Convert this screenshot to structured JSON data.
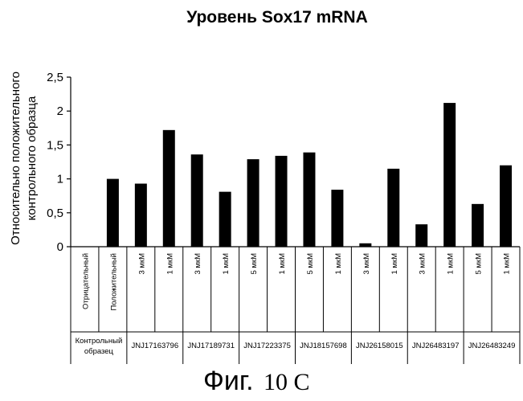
{
  "figure": {
    "caption_main": "Фиг.",
    "caption_suffix": "10 C"
  },
  "chart_data": {
    "type": "bar",
    "title": "Уровень Sox17 mRNA",
    "ylabel_lines": [
      "Относительно положительного",
      "контрольного образца"
    ],
    "xlabel": "",
    "ylim": [
      0,
      2.5
    ],
    "yticks": [
      "0",
      "0,5",
      "1",
      "1,5",
      "2",
      "2,5"
    ],
    "yticks_values": [
      0,
      0.5,
      1,
      1.5,
      2,
      2.5
    ],
    "grid": false,
    "legend": "none",
    "bar_color": "#000000",
    "categories": [
      "Отрицательный",
      "Положительный",
      "3 мкМ",
      "1 мкМ",
      "3 мкМ",
      "1 мкМ",
      "5 мкМ",
      "1 мкМ",
      "5 мкМ",
      "1 мкМ",
      "3 мкМ",
      "1 мкМ",
      "3 мкМ",
      "1 мкМ",
      "5 мкМ",
      "1 мкМ"
    ],
    "values": [
      0,
      1.0,
      0.93,
      1.72,
      1.36,
      0.81,
      1.29,
      1.34,
      1.39,
      0.84,
      0.05,
      1.15,
      0.33,
      2.12,
      0.63,
      1.2
    ],
    "groups": [
      {
        "label_lines": [
          "Контрольный",
          "образец"
        ],
        "span": 2
      },
      {
        "label_lines": [
          "JNJ17163796"
        ],
        "span": 2
      },
      {
        "label_lines": [
          "JNJ17189731"
        ],
        "span": 2
      },
      {
        "label_lines": [
          "JNJ17223375"
        ],
        "span": 2
      },
      {
        "label_lines": [
          "JNJ18157698"
        ],
        "span": 2
      },
      {
        "label_lines": [
          "JNJ26158015"
        ],
        "span": 2
      },
      {
        "label_lines": [
          "JNJ26483197"
        ],
        "span": 2
      },
      {
        "label_lines": [
          "JNJ26483249"
        ],
        "span": 2
      }
    ]
  }
}
